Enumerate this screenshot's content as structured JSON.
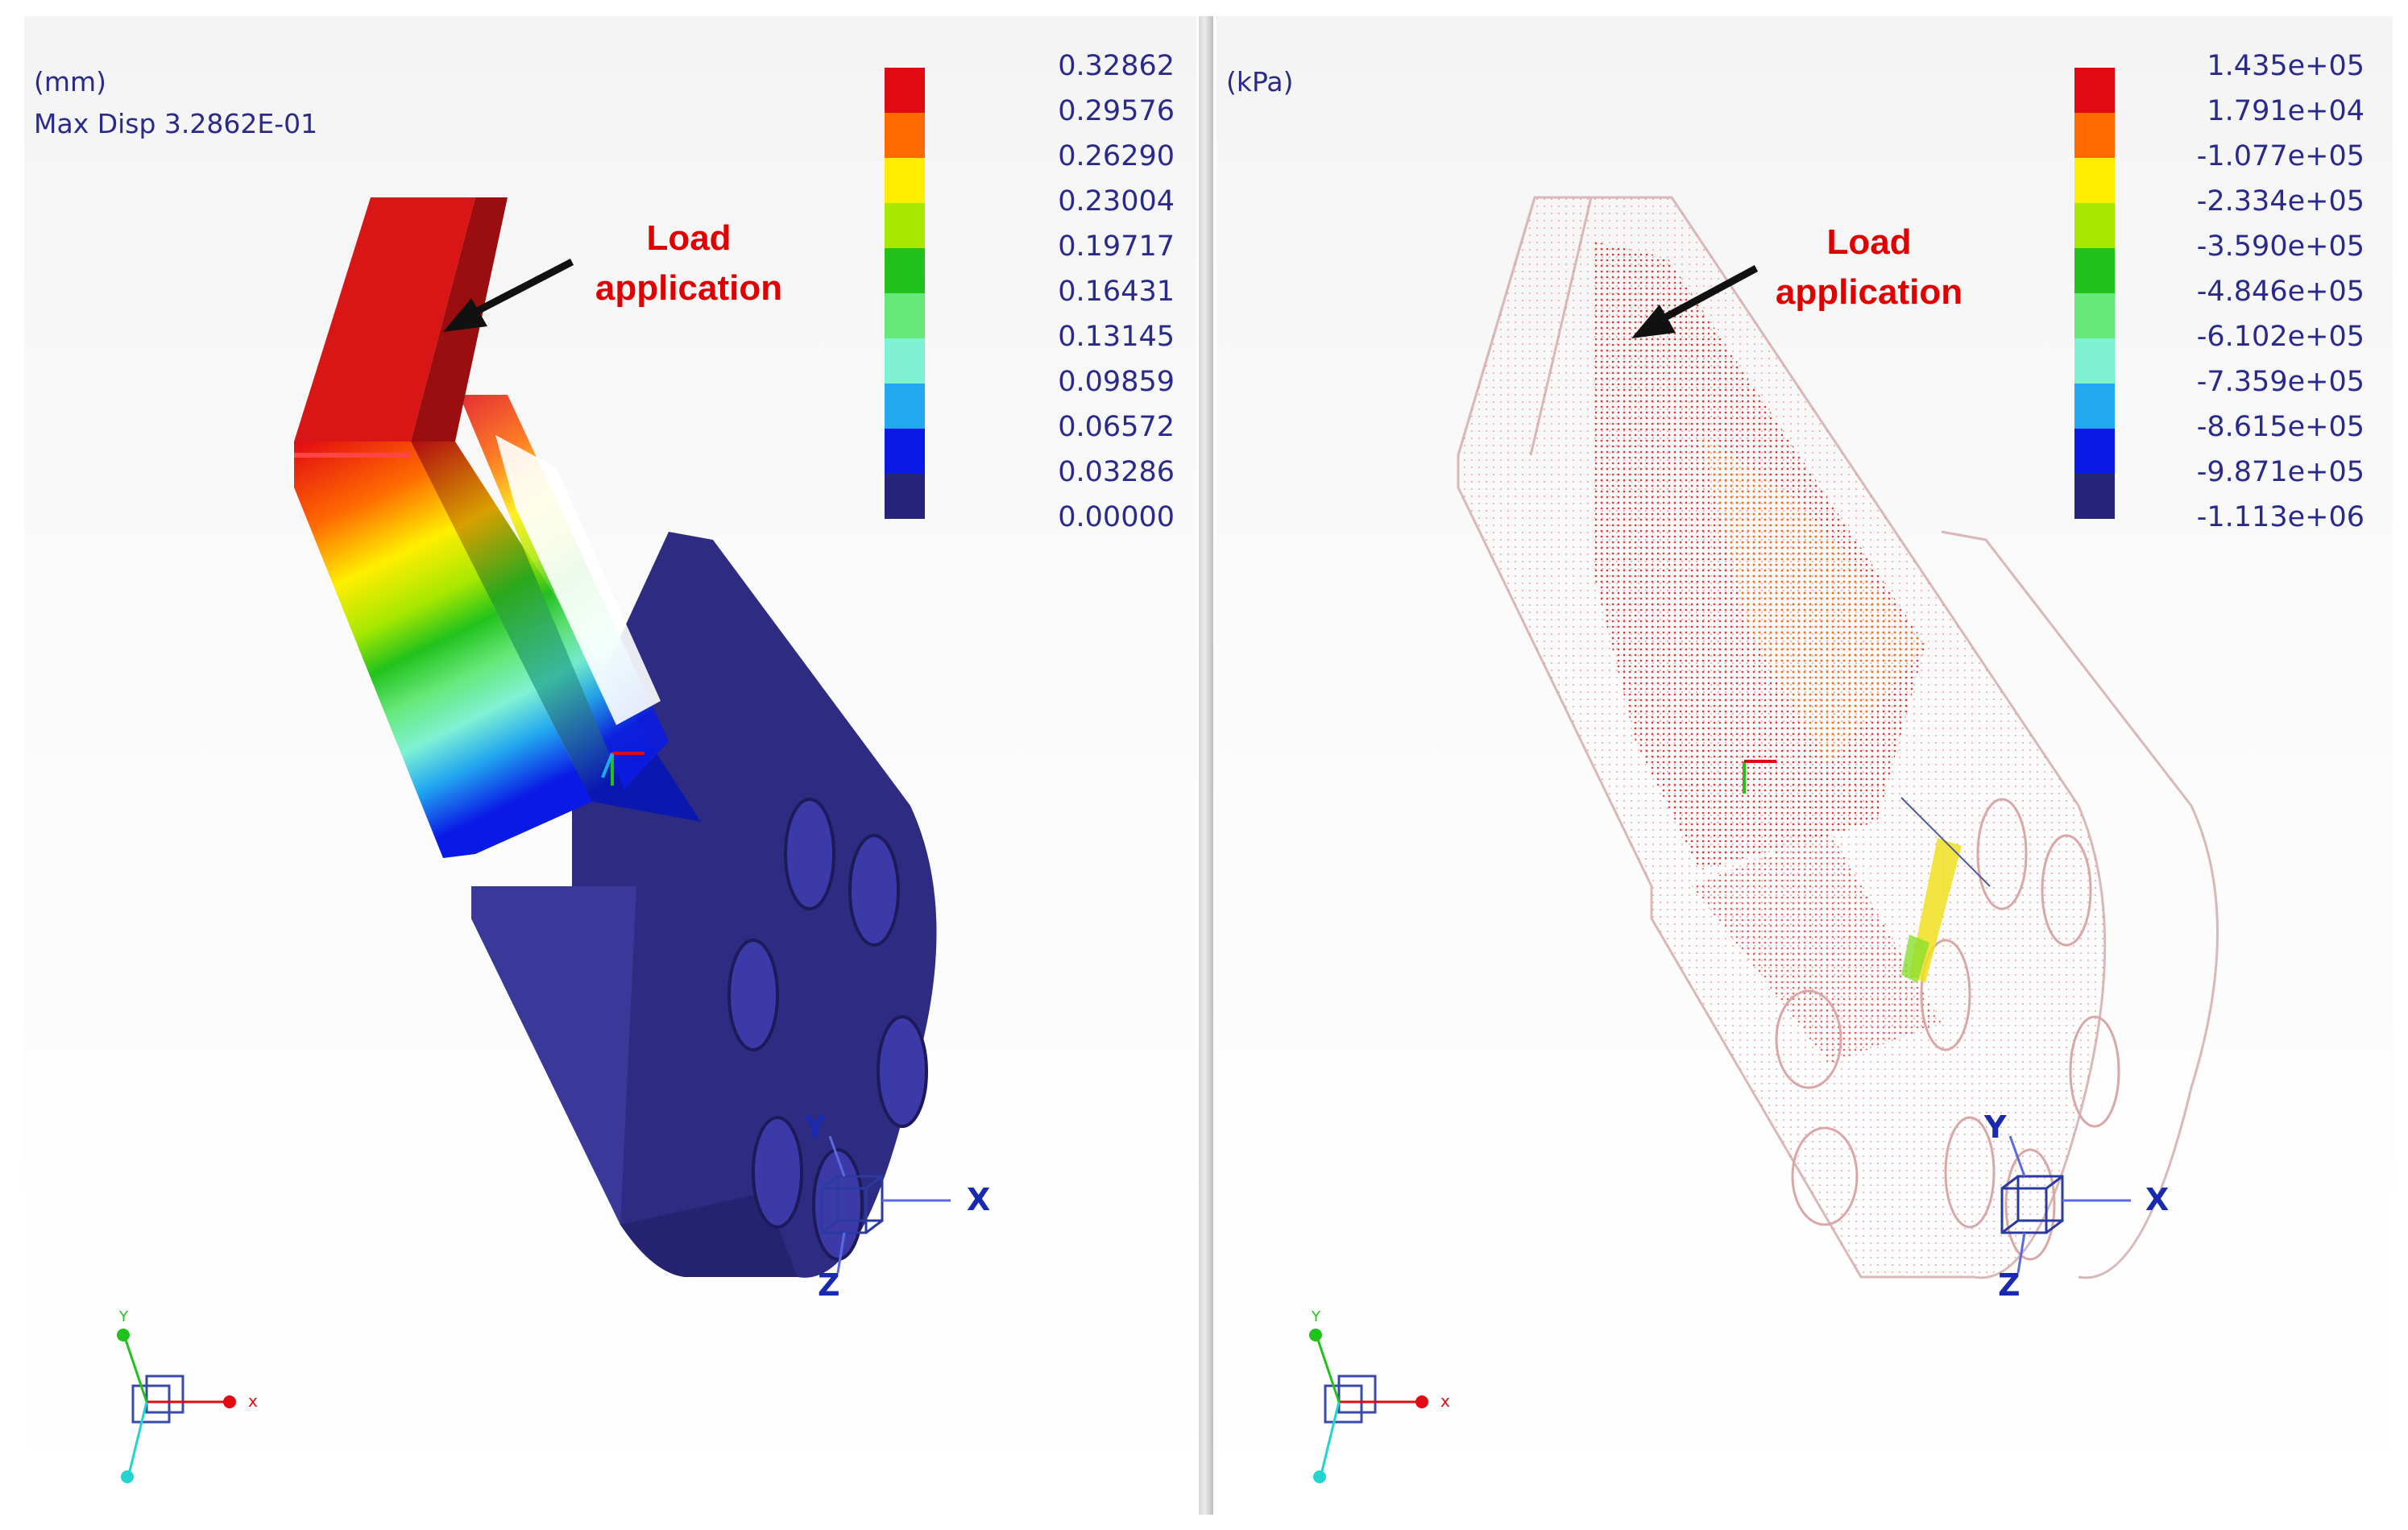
{
  "left": {
    "unit": "(mm)",
    "max_disp_label": "Max Disp  3.2862E-01",
    "load_line1": "Load",
    "load_line2": "application",
    "legend": {
      "labels": [
        "0.32862",
        "0.29576",
        "0.26290",
        "0.23004",
        "0.19717",
        "0.16431",
        "0.13145",
        "0.09859",
        "0.06572",
        "0.03286",
        "0.00000"
      ],
      "colors": [
        "#e10a12",
        "#ff6a00",
        "#ffee00",
        "#a8e800",
        "#22c21c",
        "#66e87a",
        "#7ff2d4",
        "#22a8f0",
        "#0a1ae6",
        "#25237a"
      ]
    }
  },
  "right": {
    "unit": "(kPa)",
    "load_line1": "Load",
    "load_line2": "application",
    "legend": {
      "labels": [
        "1.435e+05",
        "1.791e+04",
        "-1.077e+05",
        "-2.334e+05",
        "-3.590e+05",
        "-4.846e+05",
        "-6.102e+05",
        "-7.359e+05",
        "-8.615e+05",
        "-9.871e+05",
        "-1.113e+06"
      ],
      "colors": [
        "#e10a12",
        "#ff6a00",
        "#ffee00",
        "#a8e800",
        "#22c21c",
        "#66e87a",
        "#7ff2d4",
        "#22a8f0",
        "#0a1ae6",
        "#25237a"
      ]
    }
  },
  "axes": {
    "x": "X",
    "y": "Y",
    "z": "Z",
    "x_small": "x",
    "y_small": "Y"
  }
}
